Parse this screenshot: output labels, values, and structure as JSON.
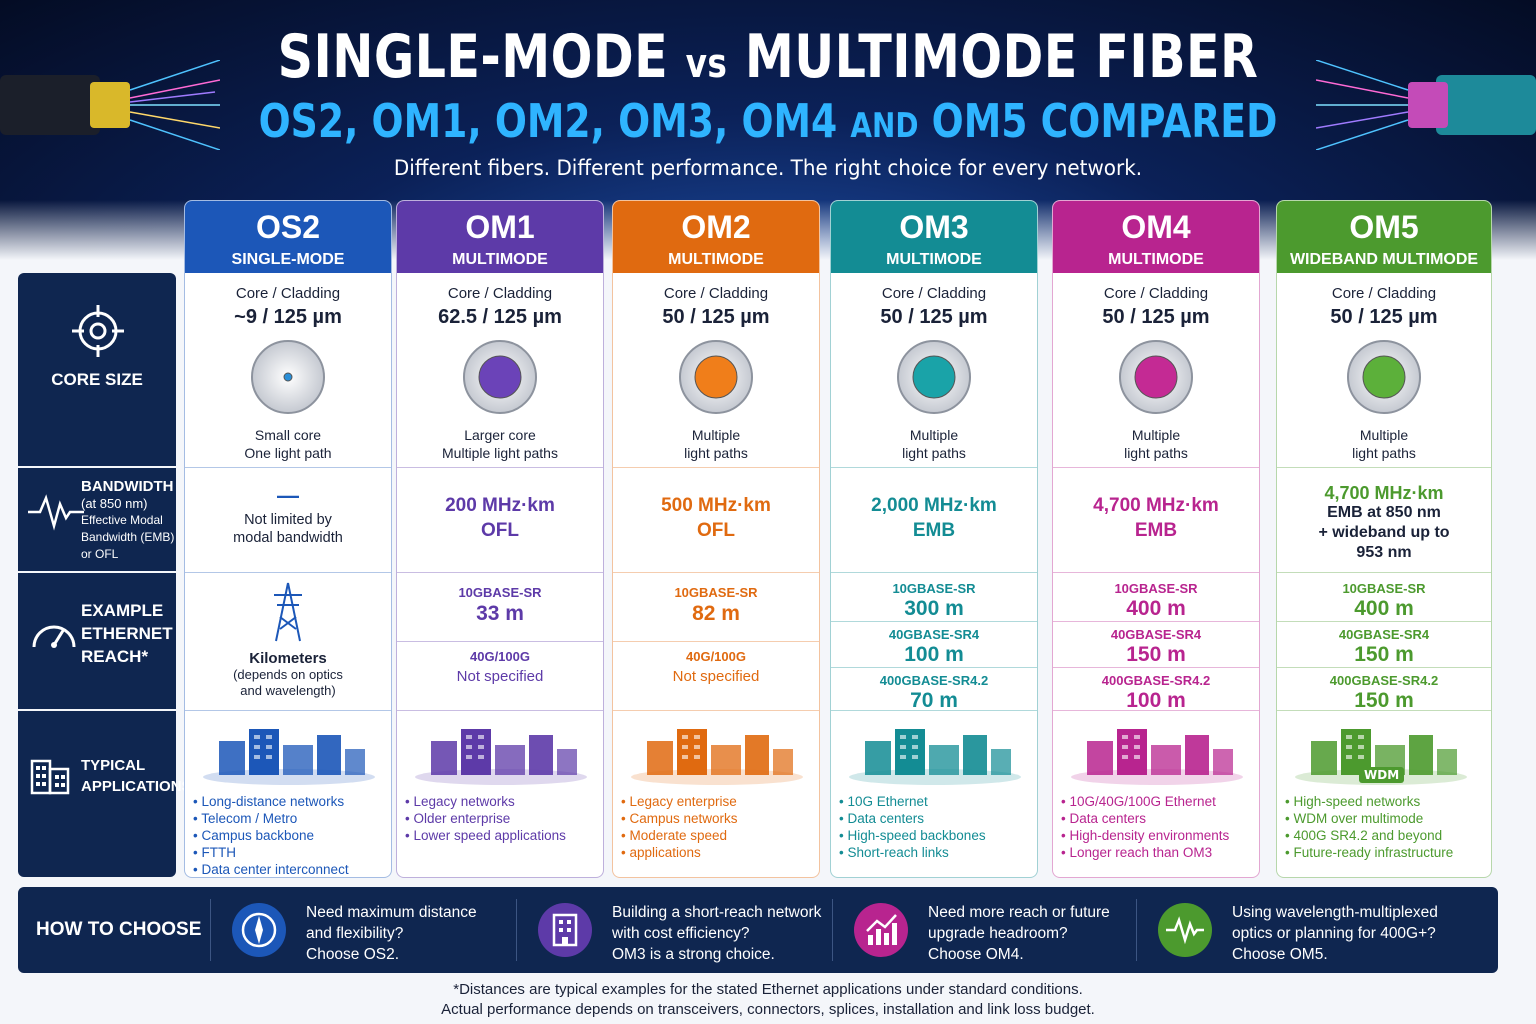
{
  "header": {
    "title_a": "SINGLE-MODE",
    "title_vs": "vs",
    "title_b": "MULTIMODE FIBER",
    "subtitle_a": "OS2, OM1, OM2, OM3, OM4",
    "subtitle_and": "AND",
    "subtitle_b": "OM5 COMPARED",
    "tagline": "Different fibers. Different performance. The right choice for every network."
  },
  "row_labels": {
    "core": "CORE SIZE",
    "bandwidth": [
      "BANDWIDTH",
      "(at 850 nm)",
      "Effective Modal",
      "Bandwidth (EMB)",
      "or OFL"
    ],
    "reach": [
      "EXAMPLE",
      "ETHERNET",
      "REACH*"
    ],
    "apps": [
      "TYPICAL",
      "APPLICATIONS"
    ]
  },
  "columns": [
    {
      "name": "OS2",
      "type": "SINGLE-MODE",
      "color": "#1c57b8",
      "core_label": "Core / Cladding",
      "core_size": "~9 / 125 µm",
      "core_color": "#2a8fd8",
      "core_note": [
        "Small core",
        "One light path"
      ],
      "bandwidth": [
        "Not limited by",
        "modal bandwidth"
      ],
      "bw_dash": "—",
      "reach_text": [
        "Kilometers",
        "(depends on optics",
        "and wavelength)"
      ],
      "apps": [
        "Long-distance networks",
        "Telecom / Metro",
        "Campus backbone",
        "FTTH",
        "Data center interconnect"
      ]
    },
    {
      "name": "OM1",
      "type": "MULTIMODE",
      "color": "#5d3aa8",
      "core_label": "Core / Cladding",
      "core_size": "62.5 / 125 µm",
      "core_color": "#6b43b8",
      "core_note": [
        "Larger core",
        "Multiple light paths"
      ],
      "bandwidth": [
        "200 MHz·km",
        "OFL"
      ],
      "reach": [
        {
          "std": "10GBASE-SR",
          "val": "33 m"
        },
        {
          "std": "40G/100G",
          "val": "Not specified"
        }
      ],
      "apps": [
        "Legacy networks",
        "Older enterprise",
        "Lower speed applications"
      ]
    },
    {
      "name": "OM2",
      "type": "MULTIMODE",
      "color": "#e06a10",
      "core_label": "Core / Cladding",
      "core_size": "50 / 125 µm",
      "core_color": "#f07e1a",
      "core_note": [
        "Multiple",
        "light paths"
      ],
      "bandwidth": [
        "500 MHz·km",
        "OFL"
      ],
      "reach": [
        {
          "std": "10GBASE-SR",
          "val": "82 m"
        },
        {
          "std": "40G/100G",
          "val": "Not specified"
        }
      ],
      "apps": [
        "Legacy enterprise",
        "Campus networks",
        "Moderate speed",
        "applications"
      ]
    },
    {
      "name": "OM3",
      "type": "MULTIMODE",
      "color": "#138c94",
      "core_label": "Core / Cladding",
      "core_size": "50 / 125 µm",
      "core_color": "#1aa3a8",
      "core_note": [
        "Multiple",
        "light paths"
      ],
      "bandwidth": [
        "2,000 MHz·km",
        "EMB"
      ],
      "reach": [
        {
          "std": "10GBASE-SR",
          "val": "300 m"
        },
        {
          "std": "40GBASE-SR4",
          "val": "100 m"
        },
        {
          "std": "400GBASE-SR4.2",
          "val": "70 m"
        }
      ],
      "apps": [
        "10G Ethernet",
        "Data centers",
        "High-speed backbones",
        "Short-reach links"
      ]
    },
    {
      "name": "OM4",
      "type": "MULTIMODE",
      "color": "#b8248f",
      "core_label": "Core / Cladding",
      "core_size": "50 / 125 µm",
      "core_color": "#c42a94",
      "core_note": [
        "Multiple",
        "light paths"
      ],
      "bandwidth": [
        "4,700 MHz·km",
        "EMB"
      ],
      "reach": [
        {
          "std": "10GBASE-SR",
          "val": "400 m"
        },
        {
          "std": "40GBASE-SR4",
          "val": "150 m"
        },
        {
          "std": "400GBASE-SR4.2",
          "val": "100 m"
        }
      ],
      "apps": [
        "10G/40G/100G Ethernet",
        "Data centers",
        "High-density environments",
        "Longer reach than OM3"
      ]
    },
    {
      "name": "OM5",
      "type": "WIDEBAND MULTIMODE",
      "color": "#4c9a2e",
      "core_label": "Core / Cladding",
      "core_size": "50 / 125 µm",
      "core_color": "#5cb03a",
      "core_note": [
        "Multiple",
        "light paths"
      ],
      "bandwidth": [
        "4,700 MHz·km",
        "EMB at 850 nm",
        "+ wideband up to",
        "953 nm"
      ],
      "reach": [
        {
          "std": "10GBASE-SR",
          "val": "400 m"
        },
        {
          "std": "40GBASE-SR4",
          "val": "150 m"
        },
        {
          "std": "400GBASE-SR4.2",
          "val": "150 m"
        }
      ],
      "apps": [
        "High-speed networks",
        "WDM over multimode",
        "400G SR4.2 and beyond",
        "Future-ready infrastructure"
      ],
      "wdm_label": "WDM"
    }
  ],
  "how_to_choose": {
    "title": "HOW TO CHOOSE",
    "tips": [
      {
        "icon": "compass-icon",
        "color": "#1c57b8",
        "text": [
          "Need maximum distance",
          "and flexibility?",
          "Choose OS2."
        ]
      },
      {
        "icon": "building-icon",
        "color": "#5d3aa8",
        "text": [
          "Building a short-reach network",
          "with cost efficiency?",
          "OM3 is a strong choice."
        ]
      },
      {
        "icon": "growth-chart-icon",
        "color": "#b8248f",
        "text": [
          "Need more reach or future",
          "upgrade headroom?",
          "Choose OM4."
        ]
      },
      {
        "icon": "waveform-icon",
        "color": "#4c9a2e",
        "text": [
          "Using wavelength-multiplexed",
          "optics or planning for 400G+?",
          "Choose OM5."
        ]
      }
    ]
  },
  "footnote": [
    "*Distances are typical examples for the stated Ethernet applications under standard conditions.",
    "Actual performance depends on transceivers, connectors, splices, installation and link loss budget."
  ]
}
